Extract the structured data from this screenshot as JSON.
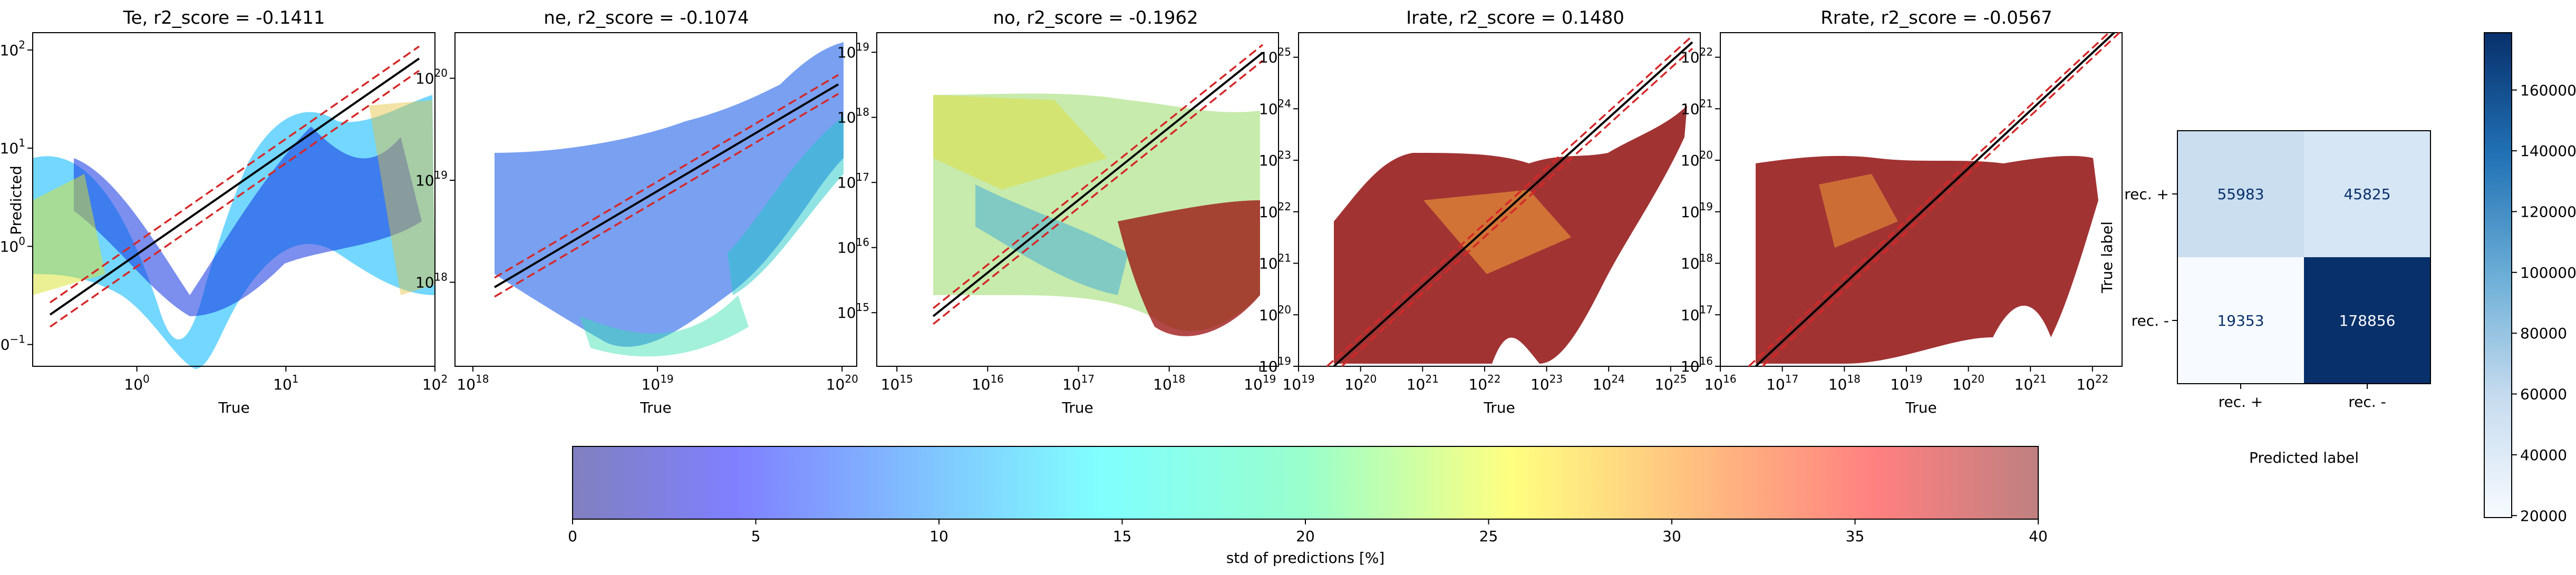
{
  "chart_data": [
    {
      "type": "scatter",
      "id": "te",
      "title": "Te, r2_score = -0.1411",
      "xlabel": "True",
      "ylabel": "Predicted",
      "xscale": "log",
      "yscale": "log",
      "xlim": [
        0.2,
        100
      ],
      "ylim": [
        0.06,
        150
      ],
      "xticks": [
        {
          "v": 1,
          "base": "10",
          "exp": "0"
        },
        {
          "v": 10,
          "base": "10",
          "exp": "1"
        },
        {
          "v": 100,
          "base": "10",
          "exp": "2"
        }
      ],
      "yticks": [
        {
          "v": 0.1,
          "base": "10",
          "exp": "−1"
        },
        {
          "v": 1,
          "base": "10",
          "exp": "0"
        },
        {
          "v": 10,
          "base": "10",
          "exp": "1"
        },
        {
          "v": 100,
          "base": "10",
          "exp": "2"
        }
      ],
      "reference_lines": [
        "y = x (black)",
        "dashed red band around y = x"
      ],
      "point_cloud_summary": {
        "x_range": [
          0.22,
          80
        ],
        "y_range": [
          0.09,
          40
        ],
        "dominant_color": "blue",
        "color_mix": "jet (blue/cyan/green/yellow/red)"
      }
    },
    {
      "type": "scatter",
      "id": "ne",
      "title": "ne, r2_score = -0.1074",
      "xlabel": "True",
      "ylabel": "",
      "xscale": "log",
      "yscale": "log",
      "xlim": [
        8e+17,
        1.2e+20
      ],
      "ylim": [
        1.5e+17,
        2.8e+20
      ],
      "xticks": [
        {
          "v": 1e+18,
          "base": "10",
          "exp": "18"
        },
        {
          "v": 1e+19,
          "base": "10",
          "exp": "19"
        },
        {
          "v": 1e+20,
          "base": "10",
          "exp": "20"
        }
      ],
      "yticks": [
        {
          "v": 1e+18,
          "base": "10",
          "exp": "18"
        },
        {
          "v": 1e+19,
          "base": "10",
          "exp": "19"
        },
        {
          "v": 1e+20,
          "base": "10",
          "exp": "20"
        }
      ],
      "reference_lines": [
        "y = x (black)",
        "dashed red band around y = x"
      ],
      "point_cloud_summary": {
        "x_range": [
          1e+18,
          1e+20
        ],
        "y_range": [
          2e+17,
          2e+20
        ],
        "dominant_color": "blue",
        "color_mix": "jet (blue/cyan/green)"
      }
    },
    {
      "type": "scatter",
      "id": "no",
      "title": "no, r2_score = -0.1962",
      "xlabel": "True",
      "ylabel": "",
      "xscale": "log",
      "yscale": "log",
      "xlim": [
        600000000000000.0,
        1.6e+19
      ],
      "ylim": [
        150000000000000.0,
        2e+19
      ],
      "xticks": [
        {
          "v": 1000000000000000.0,
          "base": "10",
          "exp": "15"
        },
        {
          "v": 1e+16,
          "base": "10",
          "exp": "16"
        },
        {
          "v": 1e+17,
          "base": "10",
          "exp": "17"
        },
        {
          "v": 1e+18,
          "base": "10",
          "exp": "18"
        },
        {
          "v": 1e+19,
          "base": "10",
          "exp": "19"
        }
      ],
      "yticks": [
        {
          "v": 1000000000000000.0,
          "base": "10",
          "exp": "15"
        },
        {
          "v": 1e+16,
          "base": "10",
          "exp": "16"
        },
        {
          "v": 1e+17,
          "base": "10",
          "exp": "17"
        },
        {
          "v": 1e+18,
          "base": "10",
          "exp": "18"
        },
        {
          "v": 1e+19,
          "base": "10",
          "exp": "19"
        }
      ],
      "reference_lines": [
        "y = x (black)",
        "dashed red band around y = x"
      ],
      "point_cloud_summary": {
        "x_range": [
          1000000000000000.0,
          1e+19
        ],
        "y_range": [
          300000000000000.0,
          2e+18
        ],
        "dominant_color": "green/yellow/red",
        "color_mix": "jet"
      }
    },
    {
      "type": "scatter",
      "id": "irate",
      "title": "Irate, r2_score = 0.1480",
      "xlabel": "True",
      "ylabel": "",
      "xscale": "log",
      "yscale": "log",
      "xlim": [
        1e+19,
        3e+25
      ],
      "ylim": [
        1e+19,
        3e+25
      ],
      "xticks": [
        {
          "v": 1e+19,
          "base": "10",
          "exp": "19"
        },
        {
          "v": 1e+20,
          "base": "10",
          "exp": "20"
        },
        {
          "v": 1e+21,
          "base": "10",
          "exp": "21"
        },
        {
          "v": 1e+22,
          "base": "10",
          "exp": "22"
        },
        {
          "v": 1e+23,
          "base": "10",
          "exp": "23"
        },
        {
          "v": 1e+24,
          "base": "10",
          "exp": "24"
        },
        {
          "v": 1e+25,
          "base": "10",
          "exp": "25"
        }
      ],
      "yticks": [
        {
          "v": 1e+19,
          "base": "10",
          "exp": "19"
        },
        {
          "v": 1e+20,
          "base": "10",
          "exp": "20"
        },
        {
          "v": 1e+21,
          "base": "10",
          "exp": "21"
        },
        {
          "v": 1e+22,
          "base": "10",
          "exp": "22"
        },
        {
          "v": 1e+23,
          "base": "10",
          "exp": "23"
        },
        {
          "v": 1e+24,
          "base": "10",
          "exp": "24"
        },
        {
          "v": 1e+25,
          "base": "10",
          "exp": "25"
        }
      ],
      "reference_lines": [
        "y = x (black)",
        "dashed red band around y = x"
      ],
      "point_cloud_summary": {
        "x_range": [
          1e+19,
          2e+25
        ],
        "y_range": [
          1e+19,
          1e+24
        ],
        "dominant_color": "dark red",
        "color_mix": "jet, mostly red"
      }
    },
    {
      "type": "scatter",
      "id": "rrate",
      "title": "Rrate, r2_score = -0.0567",
      "xlabel": "True",
      "ylabel": "",
      "xscale": "log",
      "yscale": "log",
      "xlim": [
        1e+16,
        3e+22
      ],
      "ylim": [
        1e+16,
        3e+22
      ],
      "xticks": [
        {
          "v": 1e+16,
          "base": "10",
          "exp": "16"
        },
        {
          "v": 1e+17,
          "base": "10",
          "exp": "17"
        },
        {
          "v": 1e+18,
          "base": "10",
          "exp": "18"
        },
        {
          "v": 1e+19,
          "base": "10",
          "exp": "19"
        },
        {
          "v": 1e+20,
          "base": "10",
          "exp": "20"
        },
        {
          "v": 1e+21,
          "base": "10",
          "exp": "21"
        },
        {
          "v": 1e+22,
          "base": "10",
          "exp": "22"
        }
      ],
      "yticks": [
        {
          "v": 1e+16,
          "base": "10",
          "exp": "16"
        },
        {
          "v": 1e+17,
          "base": "10",
          "exp": "17"
        },
        {
          "v": 1e+18,
          "base": "10",
          "exp": "18"
        },
        {
          "v": 1e+19,
          "base": "10",
          "exp": "19"
        },
        {
          "v": 1e+20,
          "base": "10",
          "exp": "20"
        },
        {
          "v": 1e+21,
          "base": "10",
          "exp": "21"
        },
        {
          "v": 1e+22,
          "base": "10",
          "exp": "22"
        }
      ],
      "reference_lines": [
        "y = x (black)",
        "dashed red band around y = x"
      ],
      "point_cloud_summary": {
        "x_range": [
          1e+16,
          5e+21
        ],
        "y_range": [
          1e+16,
          5e+19
        ],
        "dominant_color": "dark red",
        "color_mix": "jet, mostly red"
      }
    },
    {
      "type": "heatmap",
      "id": "confusion",
      "title": "",
      "xlabel": "Predicted label",
      "ylabel": "True label",
      "x_categories": [
        "rec. +",
        "rec. -"
      ],
      "y_categories": [
        "rec. +",
        "rec. -"
      ],
      "values": [
        [
          55983,
          45825
        ],
        [
          19353,
          178856
        ]
      ],
      "colormap": "Blues",
      "colorbar": {
        "min": 19353,
        "max": 178856,
        "ticks": [
          "20000",
          "40000",
          "60000",
          "80000",
          "100000",
          "120000",
          "140000",
          "160000"
        ]
      }
    },
    {
      "type": "colorbar",
      "id": "std_colorbar",
      "label": "std of predictions [%]",
      "range": [
        0,
        40
      ],
      "ticks": [
        "0",
        "5",
        "10",
        "15",
        "20",
        "25",
        "30",
        "35",
        "40"
      ],
      "colormap": "jet, alpha 0.5"
    }
  ],
  "colors": {
    "identity_line": "#000000",
    "band_line": "#d62728",
    "axes": "#000000"
  }
}
